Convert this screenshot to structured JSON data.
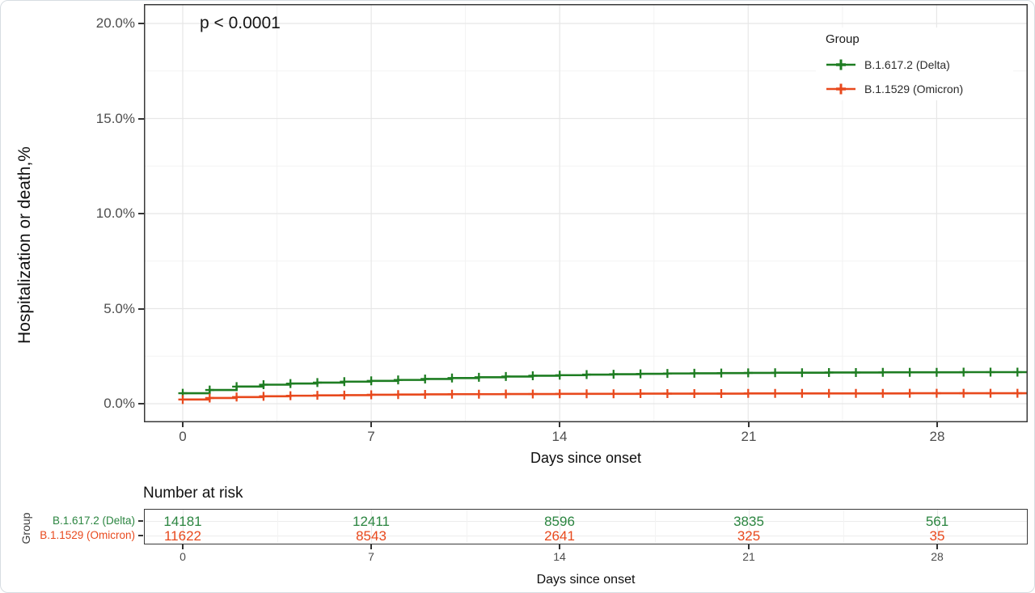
{
  "figure": {
    "p_value": "p < 0.0001",
    "y_axis": {
      "title": "Hospitalization or death,%",
      "ticks": [
        "20.0%",
        "15.0%",
        "10.0%",
        "5.0%",
        "0.0%"
      ]
    },
    "x_axis": {
      "title": "Days since onset",
      "ticks": [
        "0",
        "7",
        "14",
        "21",
        "28"
      ]
    },
    "legend": {
      "title": "Group",
      "items": [
        {
          "label": "B.1.617.2 (Delta)",
          "color": "#1e7d22"
        },
        {
          "label": "B.1.1529 (Omicron)",
          "color": "#e8491d"
        }
      ]
    }
  },
  "chart_data": {
    "type": "line",
    "subtype": "kaplan-meier cumulative incidence step curves with censoring plus marks",
    "title": "",
    "xlabel": "Days since onset",
    "ylabel": "Hospitalization or death,%",
    "xlim": [
      -1.4,
      31.4
    ],
    "ylim": [
      0,
      21
    ],
    "x_ticks": [
      0,
      7,
      14,
      21,
      28
    ],
    "y_ticks": [
      0,
      5,
      10,
      15,
      20
    ],
    "y_tick_format": "percent",
    "annotation": {
      "text": "p < 0.0001",
      "x": 1,
      "y": 20
    },
    "legend_position": "top-right-inside",
    "grid": {
      "x_major": [
        0,
        7,
        14,
        21,
        28
      ],
      "x_minor": [
        3.5,
        10.5,
        17.5,
        24.5
      ],
      "y_major": [
        0,
        5,
        10,
        15,
        20
      ],
      "y_minor": [
        2.5,
        7.5,
        12.5,
        17.5
      ]
    },
    "series": [
      {
        "name": "B.1.617.2 (Delta)",
        "color": "#1e7d22",
        "x": [
          0,
          1,
          2,
          3,
          4,
          5,
          6,
          7,
          8,
          9,
          10,
          11,
          12,
          13,
          14,
          15,
          16,
          17,
          18,
          19,
          20,
          21,
          22,
          23,
          24,
          25,
          26,
          27,
          28,
          29,
          30,
          31
        ],
        "y": [
          0.55,
          0.72,
          0.9,
          1.0,
          1.06,
          1.11,
          1.16,
          1.2,
          1.25,
          1.3,
          1.35,
          1.39,
          1.43,
          1.47,
          1.5,
          1.53,
          1.55,
          1.57,
          1.59,
          1.6,
          1.61,
          1.62,
          1.63,
          1.63,
          1.64,
          1.64,
          1.65,
          1.65,
          1.65,
          1.66,
          1.66,
          1.66
        ]
      },
      {
        "name": "B.1.1529 (Omicron)",
        "color": "#e8491d",
        "x": [
          0,
          1,
          2,
          3,
          4,
          5,
          6,
          7,
          8,
          9,
          10,
          11,
          12,
          13,
          14,
          15,
          16,
          17,
          18,
          19,
          20,
          21,
          22,
          23,
          24,
          25,
          26,
          27,
          28,
          29,
          30,
          31
        ],
        "y": [
          0.22,
          0.3,
          0.35,
          0.39,
          0.42,
          0.44,
          0.45,
          0.47,
          0.48,
          0.49,
          0.5,
          0.5,
          0.51,
          0.51,
          0.52,
          0.52,
          0.52,
          0.53,
          0.53,
          0.53,
          0.53,
          0.54,
          0.54,
          0.54,
          0.54,
          0.54,
          0.54,
          0.55,
          0.55,
          0.55,
          0.55,
          0.55
        ]
      }
    ]
  },
  "risk_table": {
    "title": "Number at risk",
    "group_axis_label": "Group",
    "x_axis": {
      "title": "Days since onset",
      "ticks": [
        "0",
        "7",
        "14",
        "21",
        "28"
      ]
    },
    "rows": [
      {
        "label": "B.1.617.2 (Delta)",
        "color": "#2b8540",
        "values": [
          "14181",
          "12411",
          "8596",
          "3835",
          "561"
        ]
      },
      {
        "label": "B.1.1529 (Omicron)",
        "color": "#e8491d",
        "values": [
          "11622",
          "8543",
          "2641",
          "325",
          "35"
        ]
      }
    ]
  }
}
